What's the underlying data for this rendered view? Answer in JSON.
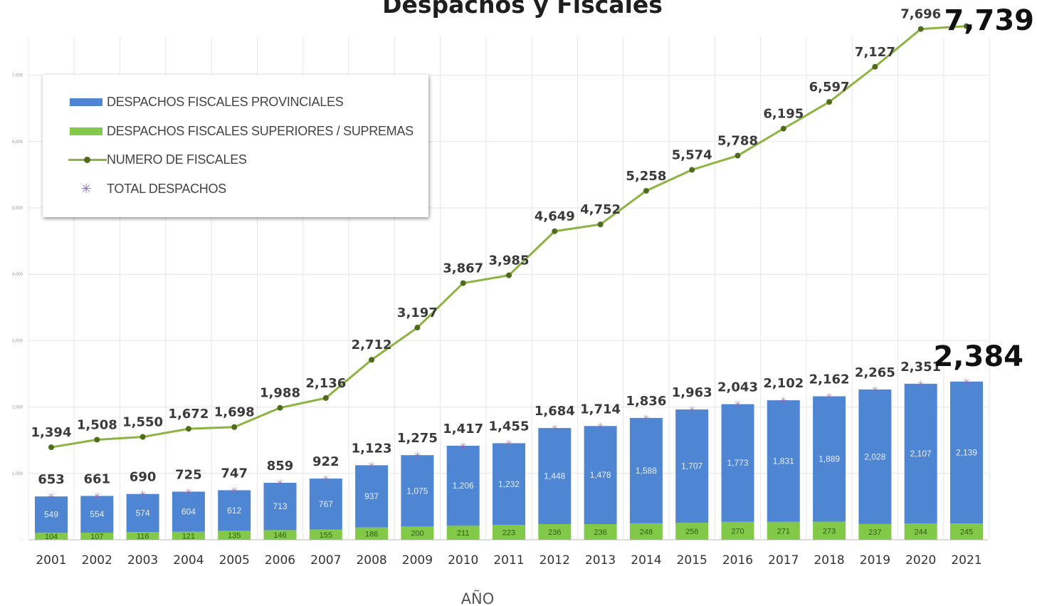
{
  "chart_data": {
    "type": "bar",
    "title": "Despachos y  Fiscales",
    "xlabel": "AÑO",
    "ylabel": "",
    "ylim": [
      0,
      7800
    ],
    "grid": true,
    "legend_position": "top-left",
    "categories": [
      "2001",
      "2002",
      "2003",
      "2004",
      "2005",
      "2006",
      "2007",
      "2008",
      "2009",
      "2010",
      "2011",
      "2012",
      "2013",
      "2014",
      "2015",
      "2016",
      "2017",
      "2018",
      "2019",
      "2020",
      "2021"
    ],
    "y_ticks": [
      "-",
      "1,000",
      "2,000",
      "3,000",
      "4,000",
      "5,000",
      "6,000",
      "7,000"
    ],
    "series": [
      {
        "name": "DESPACHOS FISCALES PROVINCIALES",
        "kind": "stacked-bar",
        "color": "#4f86d4",
        "values": [
          549,
          554,
          574,
          604,
          612,
          713,
          767,
          937,
          1075,
          1206,
          1232,
          1448,
          1478,
          1588,
          1707,
          1773,
          1831,
          1889,
          2028,
          2107,
          2139
        ]
      },
      {
        "name": "DESPACHOS FISCALES SUPERIORES / SUPREMAS",
        "kind": "stacked-bar",
        "color": "#82c94a",
        "values": [
          104,
          107,
          116,
          121,
          135,
          146,
          155,
          186,
          200,
          211,
          223,
          236,
          236,
          248,
          256,
          270,
          271,
          273,
          237,
          244,
          245
        ]
      },
      {
        "name": "NUMERO DE FISCALES",
        "kind": "line",
        "color": "#8db343",
        "values": [
          1394,
          1508,
          1550,
          1672,
          1698,
          1988,
          2136,
          2712,
          3197,
          3867,
          3985,
          4649,
          4752,
          5258,
          5574,
          5788,
          6195,
          6597,
          7127,
          7696,
          7739
        ]
      },
      {
        "name": "TOTAL DESPACHOS",
        "kind": "marker",
        "color": "#8a6fb5",
        "values": [
          653,
          661,
          690,
          725,
          747,
          859,
          922,
          1123,
          1275,
          1417,
          1455,
          1684,
          1714,
          1836,
          1963,
          2043,
          2102,
          2162,
          2265,
          2351,
          2384
        ]
      }
    ],
    "labels": {
      "prov": [
        "549",
        "554",
        "574",
        "604",
        "612",
        "713",
        "767",
        "937",
        "1,075",
        "1,206",
        "1,232",
        "1,448",
        "1,478",
        "1,588",
        "1,707",
        "1,773",
        "1,831",
        "1,889",
        "2,028",
        "2,107",
        "2,139"
      ],
      "sup": [
        "104",
        "107",
        "116",
        "121",
        "135",
        "146",
        "155",
        "186",
        "200",
        "211",
        "223",
        "236",
        "236",
        "248",
        "256",
        "270",
        "271",
        "273",
        "237",
        "244",
        "245"
      ],
      "fiscales": [
        "1,394",
        "1,508",
        "1,550",
        "1,672",
        "1,698",
        "1,988",
        "2,136",
        "2,712",
        "3,197",
        "3,867",
        "3,985",
        "4,649",
        "4,752",
        "5,258",
        "5,574",
        "5,788",
        "6,195",
        "6,597",
        "7,127",
        "7,696",
        "7,739"
      ],
      "total": [
        "653",
        "661",
        "690",
        "725",
        "747",
        "859",
        "922",
        "1,123",
        "1,275",
        "1,417",
        "1,455",
        "1,684",
        "1,714",
        "1,836",
        "1,963",
        "2,043",
        "2,102",
        "2,162",
        "2,265",
        "2,351",
        "2,384"
      ]
    }
  },
  "legend": {
    "items": [
      {
        "label": "DESPACHOS FISCALES PROVINCIALES",
        "icon": "blue-bar-swatch"
      },
      {
        "label": "DESPACHOS FISCALES SUPERIORES / SUPREMAS",
        "icon": "green-bar-swatch"
      },
      {
        "label": "NUMERO DE FISCALES",
        "icon": "green-line-marker-swatch"
      },
      {
        "label": "TOTAL DESPACHOS",
        "icon": "purple-star-marker-icon"
      }
    ]
  }
}
